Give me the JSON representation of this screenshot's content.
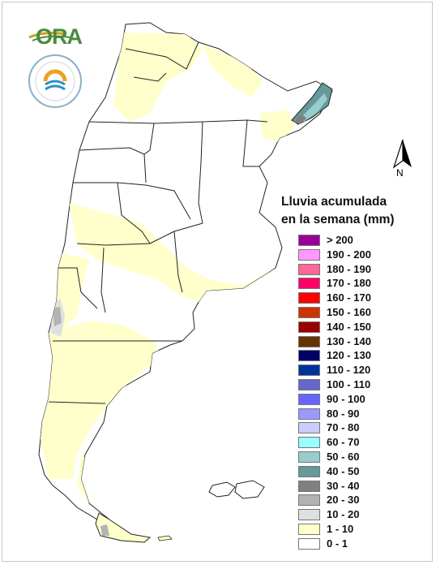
{
  "logos": {
    "ora_text": "ORA"
  },
  "north_label": "N",
  "legend": {
    "title_line1": "Lluvia acumulada",
    "title_line2": "en la semana (mm)",
    "items": [
      {
        "label": "> 200",
        "color": "#990099"
      },
      {
        "label": "190 - 200",
        "color": "#ff99ff"
      },
      {
        "label": "180 - 190",
        "color": "#ff6699"
      },
      {
        "label": "170 - 180",
        "color": "#ff0066"
      },
      {
        "label": "160 - 170",
        "color": "#ff0000"
      },
      {
        "label": "150 - 160",
        "color": "#cc3300"
      },
      {
        "label": "140 - 150",
        "color": "#990000"
      },
      {
        "label": "130 - 140",
        "color": "#663300"
      },
      {
        "label": "120 - 130",
        "color": "#000066"
      },
      {
        "label": "110 - 120",
        "color": "#003399"
      },
      {
        "label": "100 - 110",
        "color": "#6666cc"
      },
      {
        "label": "90 - 100",
        "color": "#6666ff"
      },
      {
        "label": "80 - 90",
        "color": "#9999ff"
      },
      {
        "label": "70 - 80",
        "color": "#ccccff"
      },
      {
        "label": "60 - 70",
        "color": "#99ffff"
      },
      {
        "label": "50 - 60",
        "color": "#99cccc"
      },
      {
        "label": "40 - 50",
        "color": "#669999"
      },
      {
        "label": "30 - 40",
        "color": "#808080"
      },
      {
        "label": "20 - 30",
        "color": "#b3b3b3"
      },
      {
        "label": "10 - 20",
        "color": "#e0e0e0"
      },
      {
        "label": "1 - 10",
        "color": "#ffffcc"
      },
      {
        "label": "0 - 1",
        "color": "#ffffff"
      }
    ]
  }
}
